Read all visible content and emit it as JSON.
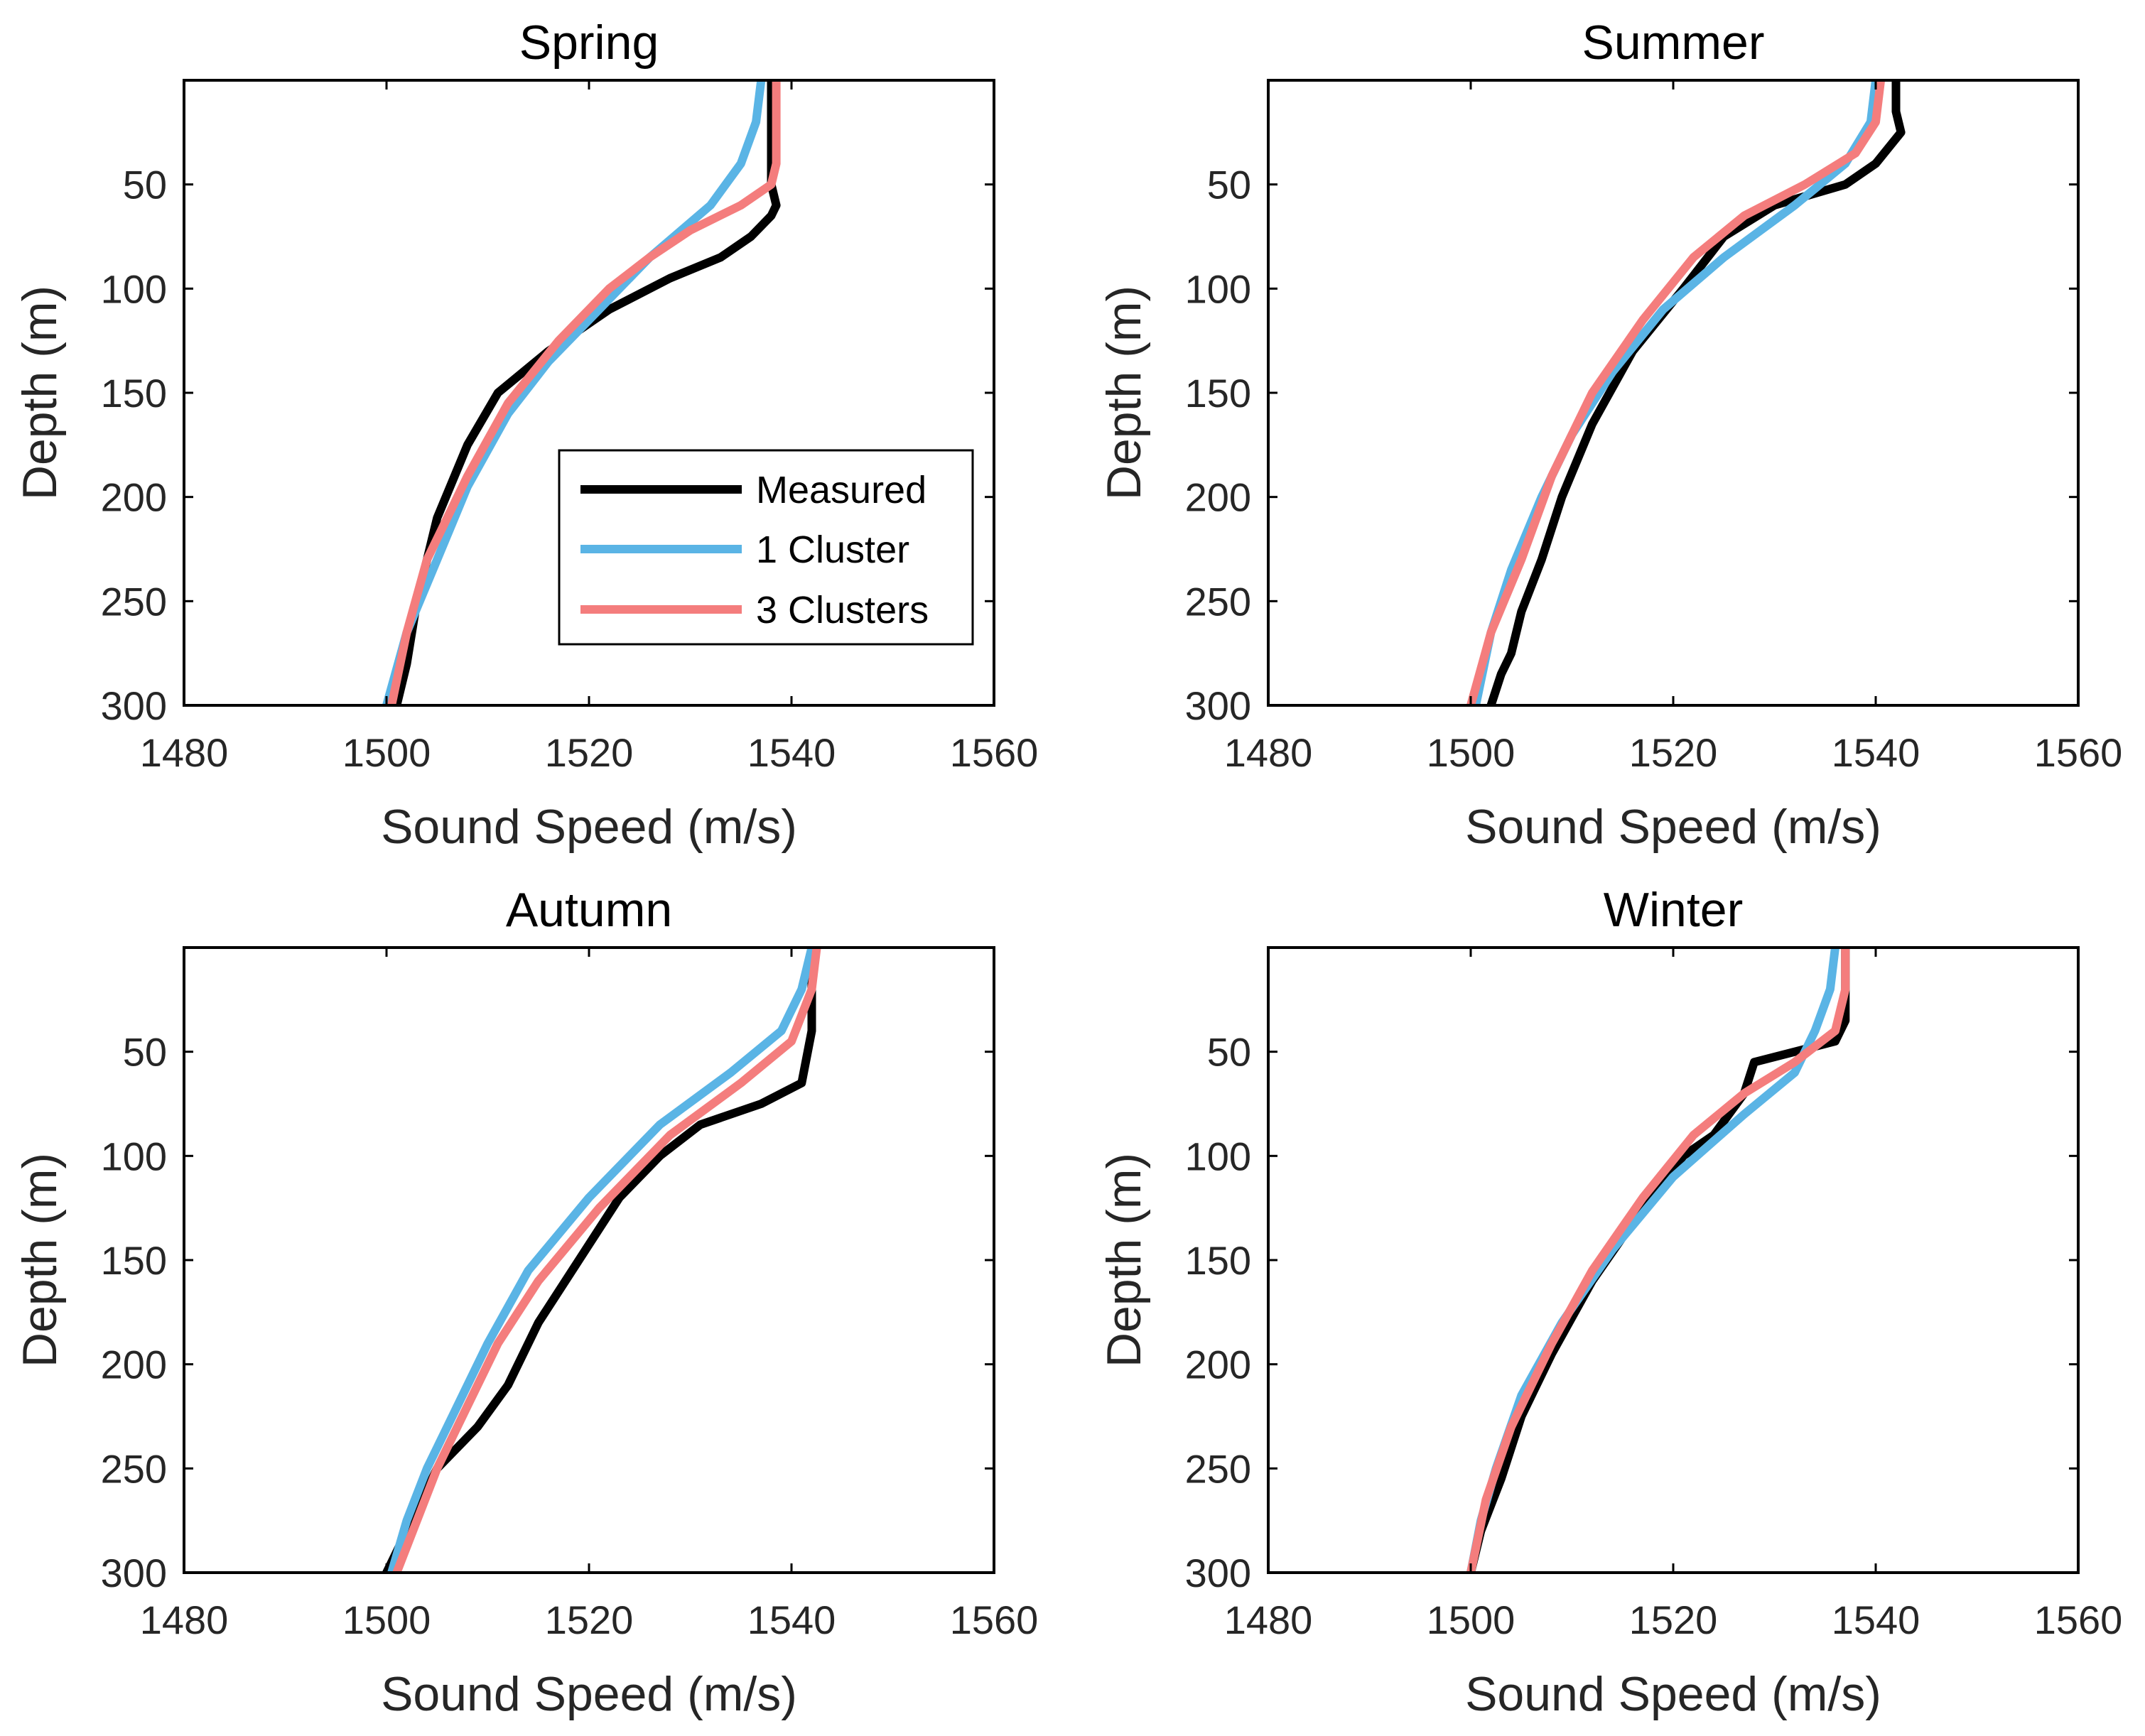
{
  "chart_data": [
    {
      "type": "line",
      "title": "Spring",
      "xlabel": "Sound Speed (m/s)",
      "ylabel": "Depth (m)",
      "xlim": [
        1480,
        1560
      ],
      "ylim": [
        0,
        300
      ],
      "y_reversed": true,
      "xticks": [
        1480,
        1500,
        1520,
        1540,
        1560
      ],
      "yticks": [
        50,
        100,
        150,
        200,
        250,
        300
      ],
      "legend": {
        "position": "inside-right",
        "entries": [
          "Measured",
          "1 Cluster",
          "3 Clusters"
        ]
      },
      "series": [
        {
          "name": "Measured",
          "color": "#000000",
          "x": [
            1538,
            1538,
            1538,
            1538.5,
            1538,
            1536,
            1533,
            1528,
            1522,
            1516,
            1511,
            1508,
            1505,
            1503,
            1502,
            1501
          ],
          "y": [
            0,
            30,
            50,
            60,
            65,
            75,
            85,
            95,
            110,
            130,
            150,
            175,
            210,
            250,
            280,
            300
          ]
        },
        {
          "name": "1 Cluster",
          "color": "#5ab4e5",
          "x": [
            1537,
            1536.5,
            1535,
            1532,
            1526,
            1521,
            1516,
            1512,
            1508,
            1505,
            1502,
            1500
          ],
          "y": [
            0,
            20,
            40,
            60,
            85,
            110,
            135,
            160,
            195,
            230,
            265,
            300
          ]
        },
        {
          "name": "3 Clusters",
          "color": "#f47d7d",
          "x": [
            1538.5,
            1538.5,
            1538.5,
            1538,
            1535,
            1530,
            1526,
            1522,
            1517,
            1512,
            1508,
            1504,
            1502,
            1500.5
          ],
          "y": [
            0,
            20,
            40,
            50,
            60,
            72,
            85,
            100,
            125,
            155,
            190,
            230,
            265,
            300
          ]
        }
      ]
    },
    {
      "type": "line",
      "title": "Summer",
      "xlabel": "Sound Speed (m/s)",
      "ylabel": "Depth (m)",
      "xlim": [
        1480,
        1560
      ],
      "ylim": [
        0,
        300
      ],
      "y_reversed": true,
      "xticks": [
        1480,
        1500,
        1520,
        1540,
        1560
      ],
      "yticks": [
        50,
        100,
        150,
        200,
        250,
        300
      ],
      "series": [
        {
          "name": "Measured",
          "color": "#000000",
          "x": [
            1542,
            1542,
            1542.5,
            1540,
            1537,
            1530,
            1525,
            1521,
            1516,
            1512,
            1509,
            1507,
            1505,
            1504,
            1503,
            1502
          ],
          "y": [
            0,
            15,
            25,
            40,
            50,
            60,
            75,
            100,
            130,
            165,
            200,
            230,
            255,
            275,
            285,
            300
          ]
        },
        {
          "name": "1 Cluster",
          "color": "#5ab4e5",
          "x": [
            1540,
            1539.5,
            1537,
            1532,
            1525,
            1519,
            1514,
            1510,
            1507,
            1504,
            1502,
            1500.5
          ],
          "y": [
            0,
            20,
            40,
            60,
            85,
            110,
            140,
            170,
            200,
            235,
            265,
            300
          ]
        },
        {
          "name": "3 Clusters",
          "color": "#f47d7d",
          "x": [
            1540.5,
            1540,
            1538,
            1533,
            1527,
            1522,
            1517,
            1512,
            1508,
            1505,
            1502,
            1500
          ],
          "y": [
            0,
            20,
            35,
            50,
            65,
            85,
            115,
            150,
            190,
            230,
            265,
            300
          ]
        }
      ]
    },
    {
      "type": "line",
      "title": "Autumn",
      "xlabel": "Sound Speed (m/s)",
      "ylabel": "Depth (m)",
      "xlim": [
        1480,
        1560
      ],
      "ylim": [
        0,
        300
      ],
      "y_reversed": true,
      "xticks": [
        1480,
        1500,
        1520,
        1540,
        1560
      ],
      "yticks": [
        50,
        100,
        150,
        200,
        250,
        300
      ],
      "series": [
        {
          "name": "Measured",
          "color": "#000000",
          "x": [
            1542,
            1542,
            1542,
            1541,
            1537,
            1531,
            1527,
            1523,
            1519,
            1515,
            1512,
            1509,
            1505,
            1502,
            1500
          ],
          "y": [
            0,
            20,
            40,
            65,
            75,
            85,
            100,
            120,
            150,
            180,
            210,
            230,
            250,
            280,
            300
          ]
        },
        {
          "name": "1 Cluster",
          "color": "#5ab4e5",
          "x": [
            1542,
            1541,
            1539,
            1534,
            1527,
            1520,
            1514,
            1510,
            1507,
            1504,
            1502,
            1500.5
          ],
          "y": [
            0,
            20,
            40,
            60,
            85,
            120,
            155,
            190,
            220,
            250,
            275,
            300
          ]
        },
        {
          "name": "3 Clusters",
          "color": "#f47d7d",
          "x": [
            1542.5,
            1542,
            1540,
            1535,
            1528,
            1521,
            1515,
            1511,
            1508,
            1505,
            1503,
            1501
          ],
          "y": [
            0,
            20,
            45,
            65,
            90,
            125,
            160,
            190,
            220,
            250,
            275,
            300
          ]
        }
      ]
    },
    {
      "type": "line",
      "title": "Winter",
      "xlabel": "Sound Speed (m/s)",
      "ylabel": "Depth (m)",
      "xlim": [
        1480,
        1560
      ],
      "ylim": [
        0,
        300
      ],
      "y_reversed": true,
      "xticks": [
        1480,
        1500,
        1520,
        1540,
        1560
      ],
      "yticks": [
        50,
        100,
        150,
        200,
        250,
        300
      ],
      "series": [
        {
          "name": "Measured",
          "color": "#000000",
          "x": [
            1537,
            1537,
            1537,
            1536,
            1532,
            1528,
            1527,
            1524,
            1521,
            1517,
            1512,
            1508,
            1505,
            1503,
            1501,
            1500
          ],
          "y": [
            0,
            20,
            35,
            45,
            50,
            55,
            70,
            90,
            100,
            125,
            160,
            195,
            225,
            255,
            280,
            300
          ]
        },
        {
          "name": "1 Cluster",
          "color": "#5ab4e5",
          "x": [
            1536,
            1535.5,
            1534,
            1532,
            1527,
            1520,
            1514,
            1509,
            1505,
            1502.5,
            1501,
            1500
          ],
          "y": [
            0,
            20,
            40,
            60,
            80,
            110,
            145,
            180,
            215,
            250,
            275,
            300
          ]
        },
        {
          "name": "3 Clusters",
          "color": "#f47d7d",
          "x": [
            1537,
            1537,
            1536,
            1532,
            1527,
            1522,
            1517,
            1512,
            1508,
            1504,
            1501.5,
            1500
          ],
          "y": [
            0,
            20,
            40,
            55,
            70,
            90,
            120,
            155,
            190,
            230,
            265,
            300
          ]
        }
      ]
    }
  ]
}
